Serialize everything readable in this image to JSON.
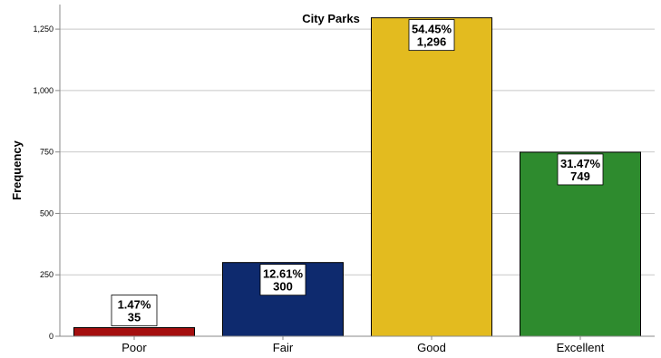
{
  "chart_data": {
    "type": "bar",
    "title": "City Parks",
    "xlabel": "",
    "ylabel": "Frequency",
    "categories": [
      "Poor",
      "Fair",
      "Good",
      "Excellent"
    ],
    "values": [
      35,
      300,
      1296,
      749
    ],
    "percent_labels": [
      "1.47%",
      "12.61%",
      "54.45%",
      "31.47%"
    ],
    "count_labels": [
      "35",
      "300",
      "1,296",
      "749"
    ],
    "colors": [
      "#a50f0f",
      "#0e2a6e",
      "#e3bb1f",
      "#2e8b2e"
    ],
    "yticks": [
      0,
      250,
      500,
      750,
      1000,
      1250
    ],
    "ytick_labels": [
      "0",
      "250",
      "500",
      "750",
      "1,000",
      "1,250"
    ],
    "ylim": [
      0,
      1350
    ],
    "grid": true,
    "legend": "none"
  }
}
